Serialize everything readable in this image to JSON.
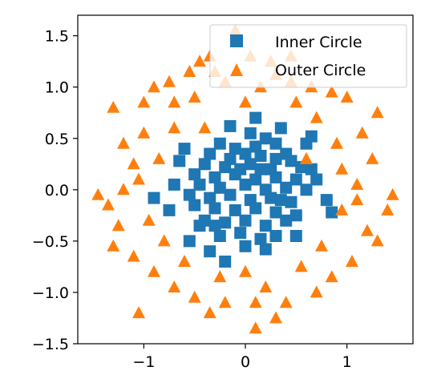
{
  "chart_data": {
    "type": "scatter",
    "title": "",
    "xlabel": "",
    "ylabel": "",
    "xlim": [
      -1.65,
      1.65
    ],
    "ylim": [
      -1.5,
      1.7
    ],
    "xticks": [
      {
        "value": -1,
        "label": "−1"
      },
      {
        "value": 0,
        "label": "0"
      },
      {
        "value": 1,
        "label": "1"
      }
    ],
    "yticks": [
      {
        "value": -1.5,
        "label": "−1.5"
      },
      {
        "value": -1.0,
        "label": "−1.0"
      },
      {
        "value": -0.5,
        "label": "−0.5"
      },
      {
        "value": 0.0,
        "label": "0.0"
      },
      {
        "value": 0.5,
        "label": "0.5"
      },
      {
        "value": 1.0,
        "label": "1.0"
      },
      {
        "value": 1.5,
        "label": "1.5"
      }
    ],
    "grid": false,
    "legend": {
      "position": "top-right"
    },
    "series": [
      {
        "name": "Inner Circle",
        "marker": "square",
        "color": "#1f77b4",
        "points": [
          [
            0.05,
            0.55
          ],
          [
            0.2,
            0.5
          ],
          [
            0.35,
            0.6
          ],
          [
            -0.25,
            0.45
          ],
          [
            -0.1,
            0.4
          ],
          [
            0.1,
            0.42
          ],
          [
            0.3,
            0.45
          ],
          [
            -0.35,
            0.35
          ],
          [
            -0.15,
            0.3
          ],
          [
            0.0,
            0.35
          ],
          [
            0.15,
            0.33
          ],
          [
            0.4,
            0.35
          ],
          [
            0.6,
            0.45
          ],
          [
            -0.4,
            0.25
          ],
          [
            -0.2,
            0.22
          ],
          [
            0.05,
            0.25
          ],
          [
            0.25,
            0.2
          ],
          [
            0.45,
            0.28
          ],
          [
            0.55,
            0.22
          ],
          [
            0.65,
            0.2
          ],
          [
            -0.5,
            0.15
          ],
          [
            -0.3,
            0.12
          ],
          [
            -0.1,
            0.15
          ],
          [
            0.1,
            0.1
          ],
          [
            0.3,
            0.12
          ],
          [
            0.5,
            0.1
          ],
          [
            -0.45,
            0.05
          ],
          [
            -0.25,
            0.02
          ],
          [
            0.0,
            0.05
          ],
          [
            0.2,
            0.0
          ],
          [
            0.4,
            0.02
          ],
          [
            0.6,
            0.0
          ],
          [
            -0.55,
            -0.05
          ],
          [
            -0.35,
            -0.08
          ],
          [
            -0.15,
            -0.05
          ],
          [
            0.05,
            -0.1
          ],
          [
            0.25,
            -0.08
          ],
          [
            0.45,
            -0.12
          ],
          [
            -0.5,
            -0.15
          ],
          [
            -0.3,
            -0.18
          ],
          [
            -0.1,
            -0.2
          ],
          [
            0.1,
            -0.18
          ],
          [
            0.3,
            -0.22
          ],
          [
            0.5,
            -0.25
          ],
          [
            -0.4,
            -0.3
          ],
          [
            -0.2,
            -0.32
          ],
          [
            0.0,
            -0.3
          ],
          [
            0.2,
            -0.35
          ],
          [
            0.4,
            -0.3
          ],
          [
            -0.25,
            -0.45
          ],
          [
            -0.05,
            -0.42
          ],
          [
            0.15,
            -0.48
          ],
          [
            0.3,
            -0.45
          ],
          [
            -0.55,
            -0.5
          ],
          [
            -0.35,
            -0.6
          ],
          [
            0.0,
            -0.55
          ],
          [
            0.2,
            -0.58
          ],
          [
            -0.7,
            0.05
          ],
          [
            -0.75,
            -0.2
          ],
          [
            0.8,
            -0.1
          ],
          [
            0.85,
            -0.22
          ],
          [
            -0.9,
            -0.08
          ],
          [
            0.7,
            0.1
          ],
          [
            -0.6,
            0.4
          ],
          [
            0.65,
            0.52
          ],
          [
            -0.15,
            0.62
          ],
          [
            0.1,
            0.7
          ],
          [
            -0.2,
            -0.7
          ],
          [
            -0.65,
            0.28
          ],
          [
            0.3,
            0.3
          ],
          [
            -0.05,
            0.2
          ],
          [
            0.15,
            0.2
          ],
          [
            -0.3,
            -0.35
          ],
          [
            0.35,
            -0.1
          ],
          [
            -0.45,
            -0.35
          ],
          [
            0.5,
            -0.45
          ]
        ]
      },
      {
        "name": "Outer Circle",
        "marker": "triangle",
        "color": "#ff7f0e",
        "points": [
          [
            -0.1,
            1.55
          ],
          [
            0.05,
            1.3
          ],
          [
            0.25,
            1.25
          ],
          [
            -0.35,
            1.3
          ],
          [
            -0.3,
            1.15
          ],
          [
            0.3,
            1.12
          ],
          [
            0.45,
            1.05
          ],
          [
            -0.55,
            1.15
          ],
          [
            -0.75,
            1.05
          ],
          [
            -0.9,
            1.0
          ],
          [
            0.65,
            1.0
          ],
          [
            0.85,
            0.95
          ],
          [
            1.0,
            0.9
          ],
          [
            -1.0,
            0.85
          ],
          [
            -1.0,
            0.55
          ],
          [
            -0.5,
            0.9
          ],
          [
            0.5,
            0.85
          ],
          [
            0.0,
            0.85
          ],
          [
            -0.2,
            1.05
          ],
          [
            0.15,
            1.0
          ],
          [
            -0.7,
            0.85
          ],
          [
            0.7,
            0.7
          ],
          [
            1.15,
            0.55
          ],
          [
            -1.2,
            0.45
          ],
          [
            -1.1,
            0.25
          ],
          [
            1.25,
            0.3
          ],
          [
            -1.45,
            -0.05
          ],
          [
            -1.35,
            -0.15
          ],
          [
            1.45,
            -0.05
          ],
          [
            1.4,
            -0.2
          ],
          [
            -1.25,
            -0.35
          ],
          [
            1.2,
            -0.4
          ],
          [
            -1.3,
            -0.55
          ],
          [
            1.3,
            -0.5
          ],
          [
            -1.1,
            -0.65
          ],
          [
            1.05,
            -0.7
          ],
          [
            -0.9,
            -0.8
          ],
          [
            0.85,
            -0.85
          ],
          [
            -0.7,
            -0.95
          ],
          [
            0.7,
            -1.0
          ],
          [
            -0.5,
            -1.05
          ],
          [
            0.4,
            -1.1
          ],
          [
            -0.2,
            -1.1
          ],
          [
            0.1,
            -1.1
          ],
          [
            -0.35,
            -1.2
          ],
          [
            0.3,
            -1.25
          ],
          [
            0.1,
            -1.35
          ],
          [
            -1.05,
            -1.2
          ],
          [
            -1.2,
            0.0
          ],
          [
            1.1,
            0.05
          ],
          [
            -0.85,
            0.3
          ],
          [
            0.9,
            0.45
          ],
          [
            -0.95,
            -0.3
          ],
          [
            0.95,
            -0.2
          ],
          [
            0.0,
            -0.8
          ],
          [
            -0.4,
            0.6
          ],
          [
            0.6,
            0.3
          ],
          [
            -0.6,
            -0.7
          ],
          [
            0.55,
            -0.75
          ],
          [
            0.95,
            0.2
          ],
          [
            -0.7,
            0.6
          ],
          [
            1.1,
            -0.1
          ],
          [
            -1.05,
            0.1
          ],
          [
            0.2,
            -0.95
          ],
          [
            -0.25,
            -0.85
          ],
          [
            -0.8,
            -0.5
          ],
          [
            0.75,
            -0.55
          ],
          [
            1.3,
            0.75
          ],
          [
            -1.3,
            0.8
          ],
          [
            0.45,
            1.3
          ],
          [
            -0.45,
            1.25
          ]
        ]
      }
    ]
  }
}
